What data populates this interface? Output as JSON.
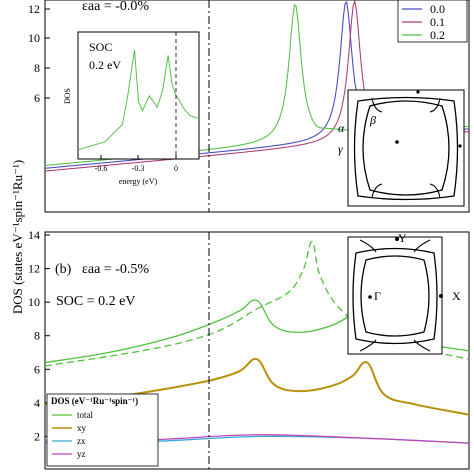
{
  "figure": {
    "ylabel": "DOS (states eV⁻¹spin⁻¹Ru⁻¹)"
  },
  "top_panel": {
    "label": "εaa = -0.0%",
    "yticks": [
      "12",
      "10",
      "8",
      "6"
    ],
    "legend": [
      "0.0",
      "0.1",
      "0.2"
    ],
    "bz_labels": [
      "α",
      "β",
      "γ"
    ]
  },
  "inset": {
    "soc_label": "SOC",
    "soc_value": "0.2 eV",
    "ylabel": "DOS",
    "xlabel": "energy (eV)",
    "xticks": [
      "-0.6",
      "-0.3",
      "0"
    ]
  },
  "bottom_panel": {
    "panel_label": "(b)",
    "strain_label": "εaa = -0.5%",
    "soc_label": "SOC = 0.2 eV",
    "yticks": [
      "14",
      "12",
      "10",
      "8",
      "6",
      "4",
      "2"
    ],
    "bz_labels": [
      "Y",
      "Γ",
      "X"
    ],
    "legend_title": "DOS (eV⁻¹Ru⁻¹spin⁻¹)",
    "legend": [
      "total",
      "xy",
      "zx",
      "yz"
    ]
  },
  "colors": {
    "s00": "#4c4cc8",
    "s01": "#b0407a",
    "s02": "#55c24a",
    "total": "#4fc23c",
    "xy": "#b8900a",
    "zx": "#3ca7d8",
    "yz": "#c244b4"
  },
  "chart_data": [
    {
      "type": "line",
      "title": "εaa = -0.0%",
      "ylabel": "DOS (states eV⁻¹spin⁻¹Ru⁻¹)",
      "ylim": [
        5,
        12.6
      ],
      "xlim": [
        -1,
        1
      ],
      "legend_position": "top-right",
      "series": [
        {
          "name": "0.0",
          "peak_x": 0.42,
          "peak_y": 12.6,
          "start_y": 6.6
        },
        {
          "name": "0.1",
          "peak_x": 0.46,
          "peak_y": 12.6,
          "start_y": 6.5
        },
        {
          "name": "0.2",
          "peak_x": 0.18,
          "peak_y": 12.5,
          "start_y": 6.7
        }
      ]
    },
    {
      "type": "line",
      "title": "SOC 0.2 eV",
      "xlabel": "energy (eV)",
      "ylabel": "DOS",
      "xlim": [
        -0.75,
        0.15
      ],
      "xticks": [
        -0.6,
        -0.3,
        0
      ],
      "series": [
        {
          "name": "DOS",
          "x": [
            -0.75,
            -0.55,
            -0.42,
            -0.38,
            -0.33,
            -0.3,
            -0.27,
            -0.22,
            -0.16,
            -0.12,
            -0.08,
            -0.05,
            -0.02,
            0.0,
            0.03,
            0.08,
            0.15
          ],
          "y": [
            0.08,
            0.15,
            0.3,
            0.55,
            0.95,
            0.5,
            0.42,
            0.55,
            0.45,
            0.6,
            0.9,
            0.65,
            0.55,
            0.52,
            0.45,
            0.38,
            0.35
          ]
        }
      ]
    },
    {
      "type": "line",
      "title": "εaa = -0.5%",
      "ylabel": "DOS (states eV⁻¹spin⁻¹Ru⁻¹)",
      "ylim": [
        0,
        14
      ],
      "yticks": [
        2,
        4,
        6,
        8,
        10,
        12,
        14
      ],
      "xlim": [
        -1,
        1
      ],
      "legend_position": "bottom-left",
      "series": [
        {
          "name": "total",
          "x": [
            -1,
            -0.7,
            -0.4,
            -0.2,
            -0.08,
            0.0,
            0.08,
            0.2,
            0.35,
            0.45,
            0.52,
            0.6,
            0.75,
            1.0
          ],
          "y": [
            6.4,
            7.0,
            7.9,
            8.8,
            9.5,
            10.1,
            8.6,
            8.2,
            8.6,
            9.3,
            10.0,
            8.3,
            7.6,
            7.1
          ]
        },
        {
          "name": "total (dashed)",
          "x": [
            -1,
            -0.5,
            -0.2,
            0.0,
            0.15,
            0.22,
            0.26,
            0.3,
            0.4,
            0.6,
            1.0
          ],
          "y": [
            6.2,
            7.2,
            8.2,
            9.6,
            10.6,
            12.0,
            13.6,
            11.5,
            9.5,
            7.8,
            6.6
          ]
        },
        {
          "name": "xy",
          "x": [
            -1,
            -0.7,
            -0.4,
            -0.2,
            -0.08,
            0.0,
            0.08,
            0.2,
            0.35,
            0.45,
            0.52,
            0.6,
            0.75,
            1.0
          ],
          "y": [
            3.9,
            4.3,
            4.9,
            5.4,
            5.9,
            6.6,
            5.1,
            4.7,
            5.0,
            5.6,
            6.4,
            4.5,
            3.9,
            3.3
          ]
        },
        {
          "name": "zx",
          "x": [
            -1,
            -0.5,
            0.0,
            0.5,
            1.0
          ],
          "y": [
            1.6,
            1.7,
            2.0,
            1.9,
            1.6
          ]
        },
        {
          "name": "yz",
          "x": [
            -1,
            -0.5,
            0.0,
            0.5,
            1.0
          ],
          "y": [
            1.7,
            1.8,
            2.1,
            1.9,
            1.6
          ]
        }
      ]
    }
  ]
}
